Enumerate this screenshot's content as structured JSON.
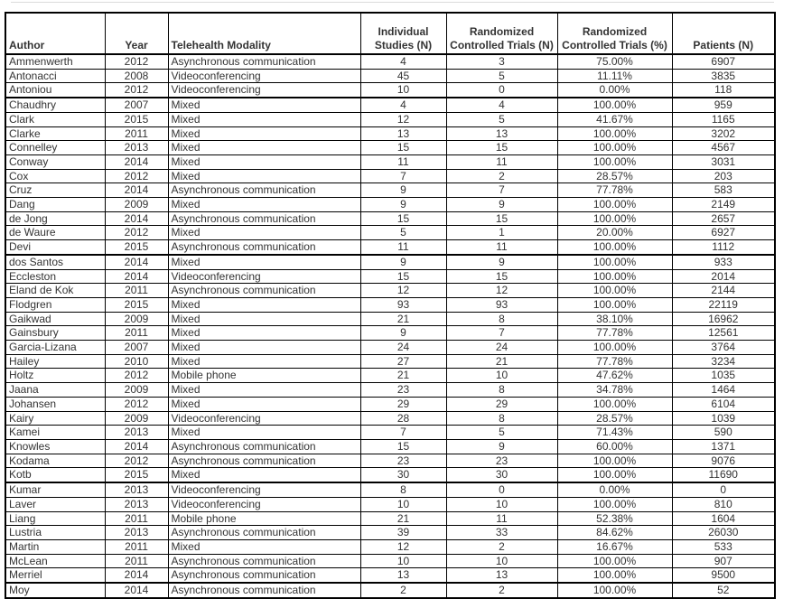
{
  "colors": {
    "text": "#333333",
    "border": "#000000",
    "background": "#ffffff"
  },
  "table": {
    "columns": [
      {
        "key": "author",
        "label": "Author",
        "align": "left"
      },
      {
        "key": "year",
        "label": "Year",
        "align": "center"
      },
      {
        "key": "modality",
        "label": "Telehealth Modality",
        "align": "left"
      },
      {
        "key": "individual_studies",
        "label": "Individual\nStudies (N)",
        "align": "center"
      },
      {
        "key": "rct_n",
        "label": "Randomized\nControlled Trials (N)",
        "align": "center"
      },
      {
        "key": "rct_pct",
        "label": "Randomized\nControlled Trials (%)",
        "align": "center"
      },
      {
        "key": "patients",
        "label": "Patients (N)",
        "align": "center"
      }
    ],
    "rows": [
      [
        "Ammenwerth",
        "2012",
        "Asynchronous communication",
        "4",
        "3",
        "75.00%",
        "6907"
      ],
      [
        "Antonacci",
        "2008",
        "Videoconferencing",
        "45",
        "5",
        "11.11%",
        "3835"
      ],
      [
        "Antoniou",
        "2012",
        "Videoconferencing",
        "10",
        "0",
        "0.00%",
        "118"
      ],
      [
        "Chaudhry",
        "2007",
        "Mixed",
        "4",
        "4",
        "100.00%",
        "959"
      ],
      [
        "Clark",
        "2015",
        "Mixed",
        "12",
        "5",
        "41.67%",
        "1165"
      ],
      [
        "Clarke",
        "2011",
        "Mixed",
        "13",
        "13",
        "100.00%",
        "3202"
      ],
      [
        "Connelley",
        "2013",
        "Mixed",
        "15",
        "15",
        "100.00%",
        "4567"
      ],
      [
        "Conway",
        "2014",
        "Mixed",
        "11",
        "11",
        "100.00%",
        "3031"
      ],
      [
        "Cox",
        "2012",
        "Mixed",
        "7",
        "2",
        "28.57%",
        "203"
      ],
      [
        "Cruz",
        "2014",
        "Asynchronous communication",
        "9",
        "7",
        "77.78%",
        "583"
      ],
      [
        "Dang",
        "2009",
        "Mixed",
        "9",
        "9",
        "100.00%",
        "2149"
      ],
      [
        "de Jong",
        "2014",
        "Asynchronous communication",
        "15",
        "15",
        "100.00%",
        "2657"
      ],
      [
        "de Waure",
        "2012",
        "Mixed",
        "5",
        "1",
        "20.00%",
        "6927"
      ],
      [
        "Devi",
        "2015",
        "Asynchronous communication",
        "11",
        "11",
        "100.00%",
        "1112"
      ],
      [
        "dos Santos",
        "2014",
        "Mixed",
        "9",
        "9",
        "100.00%",
        "933"
      ],
      [
        "Eccleston",
        "2014",
        "Videoconferencing",
        "15",
        "15",
        "100.00%",
        "2014"
      ],
      [
        "Eland de Kok",
        "2011",
        "Asynchronous communication",
        "12",
        "12",
        "100.00%",
        "2144"
      ],
      [
        "Flodgren",
        "2015",
        "Mixed",
        "93",
        "93",
        "100.00%",
        "22119"
      ],
      [
        "Gaikwad",
        "2009",
        "Mixed",
        "21",
        "8",
        "38.10%",
        "16962"
      ],
      [
        "Gainsbury",
        "2011",
        "Mixed",
        "9",
        "7",
        "77.78%",
        "12561"
      ],
      [
        "Garcia-Lizana",
        "2007",
        "Mixed",
        "24",
        "24",
        "100.00%",
        "3764"
      ],
      [
        "Hailey",
        "2010",
        "Mixed",
        "27",
        "21",
        "77.78%",
        "3234"
      ],
      [
        "Holtz",
        "2012",
        "Mobile phone",
        "21",
        "10",
        "47.62%",
        "1035"
      ],
      [
        "Jaana",
        "2009",
        "Mixed",
        "23",
        "8",
        "34.78%",
        "1464"
      ],
      [
        "Johansen",
        "2012",
        "Mixed",
        "29",
        "29",
        "100.00%",
        "6104"
      ],
      [
        "Kairy",
        "2009",
        "Videoconferencing",
        "28",
        "8",
        "28.57%",
        "1039"
      ],
      [
        "Kamei",
        "2013",
        "Mixed",
        "7",
        "5",
        "71.43%",
        "590"
      ],
      [
        "Knowles",
        "2014",
        "Asynchronous communication",
        "15",
        "9",
        "60.00%",
        "1371"
      ],
      [
        "Kodama",
        "2012",
        "Asynchronous communication",
        "23",
        "23",
        "100.00%",
        "9076"
      ],
      [
        "Kotb",
        "2015",
        "Mixed",
        "30",
        "30",
        "100.00%",
        "11690"
      ],
      [
        "Kumar",
        "2013",
        "Videoconferencing",
        "8",
        "0",
        "0.00%",
        "0"
      ],
      [
        "Laver",
        "2013",
        "Videoconferencing",
        "10",
        "10",
        "100.00%",
        "810"
      ],
      [
        "Liang",
        "2011",
        "Mobile phone",
        "21",
        "11",
        "52.38%",
        "1604"
      ],
      [
        "Lustria",
        "2013",
        "Asynchronous communication",
        "39",
        "33",
        "84.62%",
        "26030"
      ],
      [
        "Martin",
        "2011",
        "Mixed",
        "12",
        "2",
        "16.67%",
        "533"
      ],
      [
        "McLean",
        "2011",
        "Asynchronous communication",
        "10",
        "10",
        "100.00%",
        "907"
      ],
      [
        "Merriel",
        "2014",
        "Asynchronous communication",
        "13",
        "13",
        "100.00%",
        "9500"
      ],
      [
        "Moy",
        "2014",
        "Asynchronous communication",
        "2",
        "2",
        "100.00%",
        "52"
      ]
    ],
    "thick_top_row_indices": [
      3,
      14,
      30,
      37
    ]
  }
}
